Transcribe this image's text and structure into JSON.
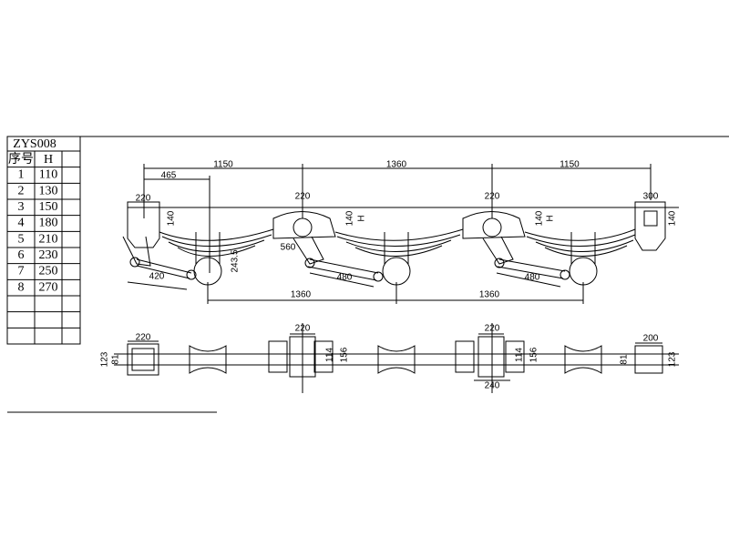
{
  "table": {
    "title": "ZYS008",
    "headers": [
      "序号",
      "H"
    ],
    "rows": [
      [
        "1",
        "110"
      ],
      [
        "2",
        "130"
      ],
      [
        "3",
        "150"
      ],
      [
        "4",
        "180"
      ],
      [
        "5",
        "210"
      ],
      [
        "6",
        "230"
      ],
      [
        "7",
        "250"
      ],
      [
        "8",
        "270"
      ]
    ]
  },
  "elevation": {
    "dimensions": [
      "465",
      "1150",
      "1360",
      "1150",
      "220",
      "140",
      "220",
      "140",
      "220",
      "140",
      "300",
      "140",
      "560",
      "243.5",
      "420",
      "480",
      "480",
      "1360",
      "1360"
    ],
    "h_labels": [
      "H",
      "H"
    ]
  },
  "plan": {
    "dimensions": [
      "220",
      "123",
      "81",
      "220",
      "114",
      "156",
      "220",
      "114",
      "156",
      "240",
      "200",
      "81",
      "123"
    ]
  }
}
